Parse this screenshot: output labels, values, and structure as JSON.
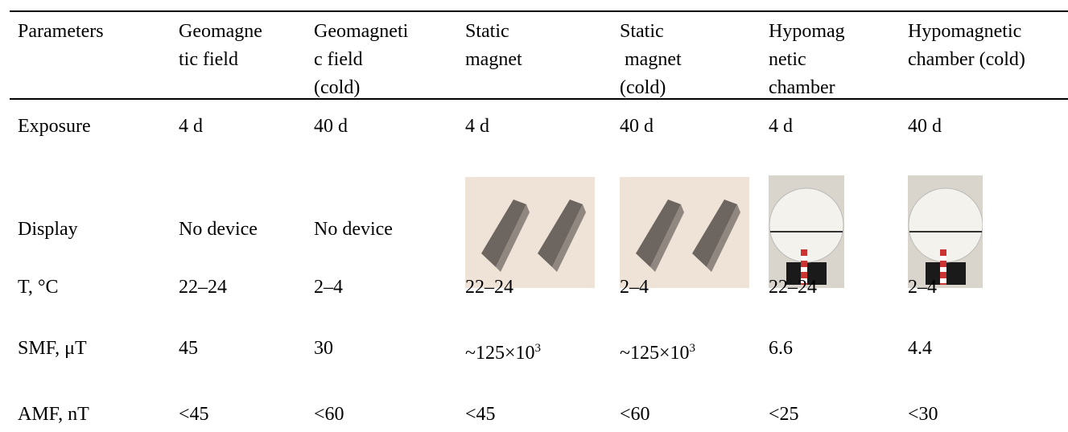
{
  "table": {
    "header": [
      [
        "Parameters"
      ],
      [
        "Geomagne",
        "tic field"
      ],
      [
        "Geomagneti",
        "c field",
        "(cold)"
      ],
      [
        "Static",
        "magnet"
      ],
      [
        "Static",
        " magnet",
        "(cold)"
      ],
      [
        "Hypomag",
        "netic",
        "chamber"
      ],
      [
        "Hypomagnetic",
        "chamber (cold)"
      ]
    ],
    "rows": [
      [
        "Exposure",
        "4 d",
        "40 d",
        "4 d",
        "40 d",
        "4 d",
        "40 d"
      ],
      [
        "Display",
        "No device",
        "No device"
      ],
      [
        "T, °C",
        "22–24",
        "2–4",
        "22–24",
        "2–4",
        "22–24",
        "2–4"
      ],
      [
        "SMF, μT",
        "45",
        "30",
        {
          "text": "~125×10",
          "sup": "3"
        },
        {
          "text": "~125×10",
          "sup": "3"
        },
        "6.6",
        "4.4"
      ],
      [
        "AMF, nT",
        "<45",
        "<60",
        "<45",
        "<60",
        "<25",
        "<30"
      ]
    ]
  }
}
